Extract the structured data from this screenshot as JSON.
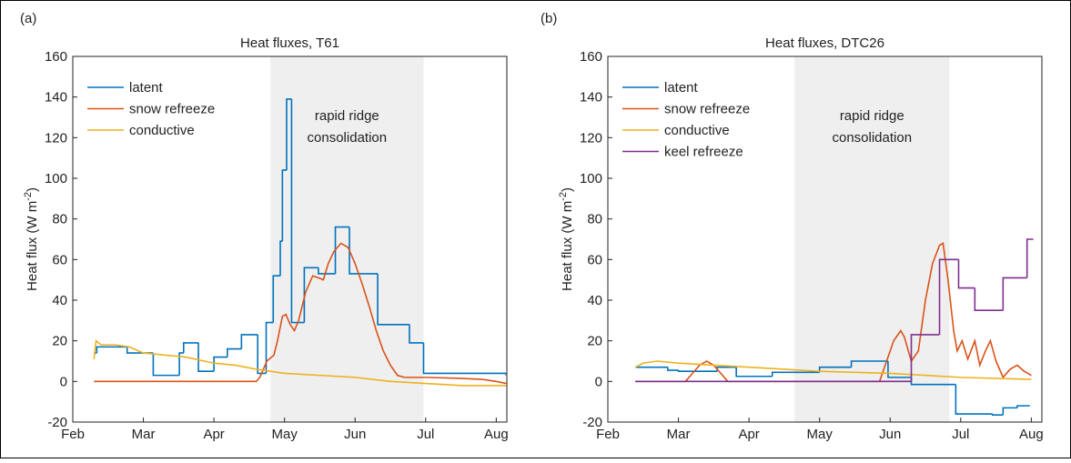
{
  "chart_data": [
    {
      "type": "line",
      "panel_label": "(a)",
      "title": "Heat fluxes, T61",
      "ylabel": [
        "Heat flux (W m",
        "-2",
        ")"
      ],
      "annotation": [
        "rapid ridge",
        "consolidation"
      ],
      "shade": [
        2.8,
        4.97
      ],
      "shade_color": "#efefef",
      "xlim": [
        0,
        6.15
      ],
      "ylim": [
        -20,
        160
      ],
      "xticks": [
        {
          "value": 0,
          "label": "Feb"
        },
        {
          "value": 1,
          "label": "Mar"
        },
        {
          "value": 2,
          "label": "Apr"
        },
        {
          "value": 3,
          "label": "May"
        },
        {
          "value": 4,
          "label": "Jun"
        },
        {
          "value": 5,
          "label": "Jul"
        },
        {
          "value": 6,
          "label": "Aug"
        }
      ],
      "yticks": [
        -20,
        0,
        20,
        40,
        60,
        80,
        100,
        120,
        140,
        160
      ],
      "legend": "upper left",
      "series": [
        {
          "name": "latent",
          "color": "#0072bd",
          "step": true,
          "x": [
            0.3,
            0.34,
            0.77,
            1.14,
            1.51,
            1.57,
            1.78,
            2.0,
            2.19,
            2.39,
            2.62,
            2.74,
            2.84,
            2.94,
            2.97,
            3.03,
            3.1,
            3.28,
            3.48,
            3.72,
            3.92,
            4.32,
            4.77,
            4.97,
            6.14
          ],
          "values": [
            14,
            17,
            14,
            3,
            14,
            19,
            5,
            12,
            16,
            23,
            4,
            29,
            52,
            69,
            104,
            139,
            29,
            56,
            53,
            76,
            53,
            28,
            19,
            4,
            3
          ]
        },
        {
          "name": "snow refreeze",
          "color": "#d95319",
          "x": [
            0.3,
            2.6,
            2.65,
            2.75,
            2.85,
            2.9,
            2.97,
            3.02,
            3.08,
            3.14,
            3.2,
            3.3,
            3.4,
            3.48,
            3.55,
            3.62,
            3.7,
            3.8,
            3.9,
            4.0,
            4.1,
            4.2,
            4.3,
            4.4,
            4.5,
            4.6,
            4.7,
            5.0,
            5.5,
            5.8,
            6.0,
            6.14
          ],
          "values": [
            0,
            0,
            2,
            10,
            13,
            20,
            32,
            33,
            28,
            25,
            30,
            44,
            52,
            51,
            50,
            58,
            64,
            68,
            66,
            58,
            48,
            37,
            25,
            15,
            8,
            3,
            2,
            2,
            1.5,
            1,
            0,
            -1
          ]
        },
        {
          "name": "conductive",
          "color": "#edb120",
          "x": [
            0.3,
            0.33,
            0.4,
            0.6,
            0.8,
            1.0,
            1.3,
            1.6,
            2.0,
            2.3,
            2.6,
            3.0,
            3.5,
            4.0,
            4.5,
            5.0,
            5.5,
            6.14
          ],
          "values": [
            11,
            20,
            18,
            18,
            17,
            14,
            13,
            12,
            9,
            8,
            6,
            4,
            3,
            2,
            0,
            -1,
            -2,
            -2
          ]
        }
      ]
    },
    {
      "type": "line",
      "panel_label": "(b)",
      "title": "Heat fluxes, DTC26",
      "ylabel": [
        "Heat flux (W m",
        "-2",
        ")"
      ],
      "annotation": [
        "rapid ridge",
        "consolidation"
      ],
      "shade": [
        2.645,
        4.84
      ],
      "shade_color": "#efefef",
      "xlim": [
        0,
        6.15
      ],
      "ylim": [
        -20,
        160
      ],
      "xticks": [
        {
          "value": 0,
          "label": "Feb"
        },
        {
          "value": 1,
          "label": "Mar"
        },
        {
          "value": 2,
          "label": "Apr"
        },
        {
          "value": 3,
          "label": "May"
        },
        {
          "value": 4,
          "label": "Jun"
        },
        {
          "value": 5,
          "label": "Jul"
        },
        {
          "value": 6,
          "label": "Aug"
        }
      ],
      "yticks": [
        -20,
        0,
        20,
        40,
        60,
        80,
        100,
        120,
        140,
        160
      ],
      "legend": "upper left",
      "series": [
        {
          "name": "latent",
          "color": "#0072bd",
          "step": true,
          "x": [
            0.39,
            0.85,
            1.0,
            1.55,
            1.82,
            2.33,
            3.0,
            3.45,
            3.97,
            4.3,
            4.93,
            5.45,
            5.6,
            5.8,
            5.98
          ],
          "values": [
            7,
            5.5,
            5,
            7,
            2.5,
            4.5,
            7,
            10,
            2,
            -1.5,
            -16,
            -16.5,
            -13,
            -12,
            -12
          ]
        },
        {
          "name": "snow refreeze",
          "color": "#d95319",
          "x": [
            0.39,
            1.1,
            1.3,
            1.4,
            1.5,
            1.7,
            3.85,
            3.95,
            4.05,
            4.15,
            4.2,
            4.3,
            4.4,
            4.5,
            4.6,
            4.7,
            4.75,
            4.82,
            4.9,
            4.95,
            5.02,
            5.1,
            5.2,
            5.27,
            5.35,
            5.42,
            5.5,
            5.6,
            5.7,
            5.8,
            5.9,
            6.0
          ],
          "values": [
            0,
            0,
            8,
            10,
            8,
            0,
            0,
            10,
            20,
            25,
            22,
            10,
            15,
            40,
            58,
            67,
            68,
            50,
            25,
            15,
            20,
            11,
            20,
            8,
            15,
            20,
            10,
            2,
            6,
            8,
            5,
            3
          ]
        },
        {
          "name": "conductive",
          "color": "#edb120",
          "x": [
            0.39,
            0.5,
            0.7,
            1.0,
            1.5,
            2.0,
            3.0,
            4.0,
            5.0,
            6.0
          ],
          "values": [
            7,
            9,
            10,
            9,
            8,
            7,
            5,
            4,
            2,
            1
          ]
        },
        {
          "name": "keel refreeze",
          "color": "#7e2f8e",
          "step": true,
          "x": [
            0.39,
            4.3,
            4.7,
            4.97,
            5.2,
            5.6,
            5.94,
            6.03
          ],
          "values": [
            0,
            23,
            60,
            46,
            35,
            51,
            70,
            70
          ]
        }
      ]
    }
  ]
}
